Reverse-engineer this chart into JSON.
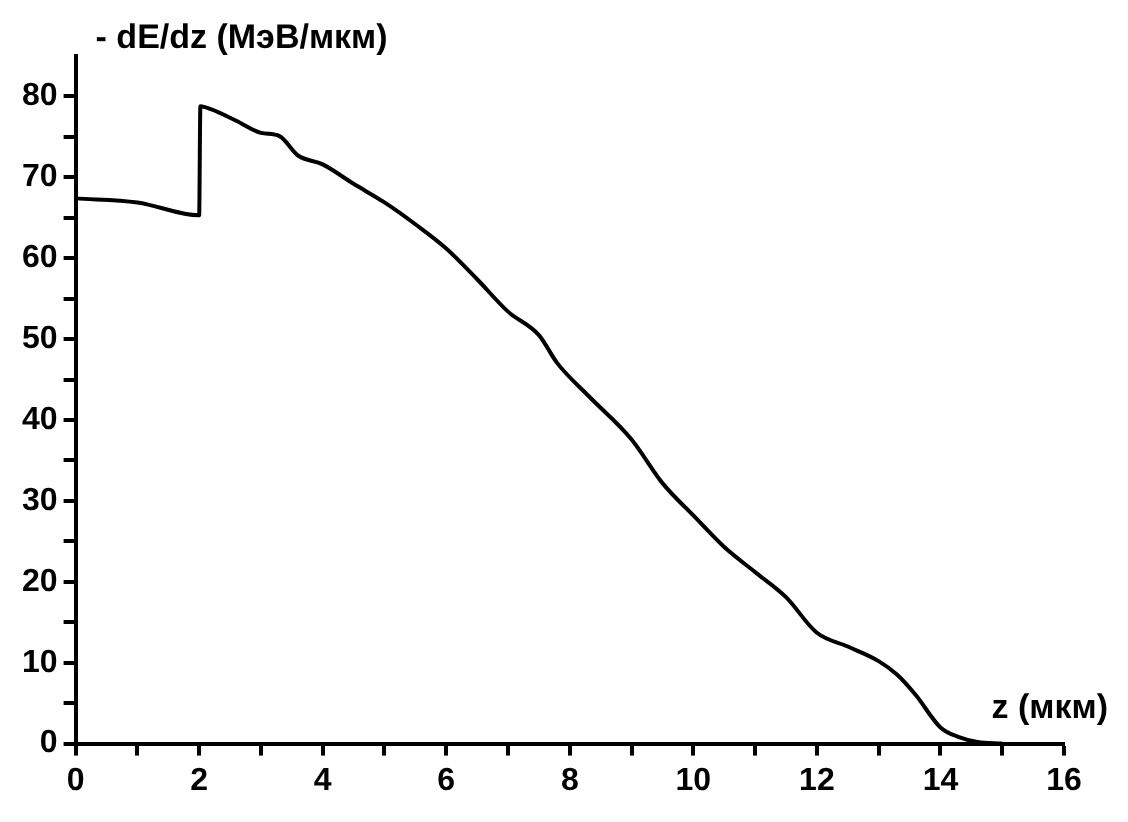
{
  "chart_data": {
    "type": "line",
    "ylabel": "- dE/dz (МэВ/мкм)",
    "xlabel": "z (мкм)",
    "series": [
      {
        "color": "#000000",
        "x": [
          0,
          1,
          2,
          2.02,
          2.2,
          2.6,
          3,
          3.3,
          3.6,
          4,
          4.5,
          5,
          5.5,
          6,
          6.5,
          7,
          7.5,
          7.8,
          8.3,
          9,
          9.5,
          10,
          10.5,
          11,
          11.5,
          12,
          12.5,
          13,
          13.3,
          13.6,
          14,
          14.3,
          14.6,
          15
        ],
        "values": [
          67.4,
          66.9,
          65.3,
          78.8,
          78.4,
          77,
          75.5,
          75.1,
          72.7,
          71.6,
          69.2,
          66.9,
          64.2,
          61.2,
          57.4,
          53.4,
          50.5,
          47,
          43,
          37.6,
          32.2,
          28.2,
          24.3,
          21.2,
          18.1,
          13.7,
          12,
          10.2,
          8.5,
          6,
          2,
          0.8,
          0.2,
          0
        ]
      }
    ],
    "xlim": [
      0,
      16
    ],
    "ylim": [
      0,
      85
    ],
    "xticks": [
      0,
      {
        "value": 1,
        "label": null
      },
      2,
      {
        "value": 3,
        "label": null
      },
      4,
      {
        "value": 5,
        "label": null
      },
      6,
      {
        "value": 7,
        "label": null
      },
      8,
      {
        "value": 9,
        "label": null
      },
      10,
      {
        "value": 11,
        "label": null
      },
      12,
      {
        "value": 13,
        "label": null
      },
      14,
      {
        "value": 15,
        "label": null
      },
      16
    ],
    "yticks": [
      0,
      {
        "value": 5,
        "label": null
      },
      10,
      {
        "value": 15,
        "label": null
      },
      20,
      {
        "value": 25,
        "label": null
      },
      30,
      {
        "value": 35,
        "label": null
      },
      40,
      {
        "value": 45,
        "label": null
      },
      50,
      {
        "value": 55,
        "label": null
      },
      60,
      {
        "value": 65,
        "label": null
      },
      70,
      {
        "value": 75,
        "label": null
      },
      80
    ],
    "grid": false,
    "legend": false,
    "marker": "none",
    "line_style": "solid"
  }
}
